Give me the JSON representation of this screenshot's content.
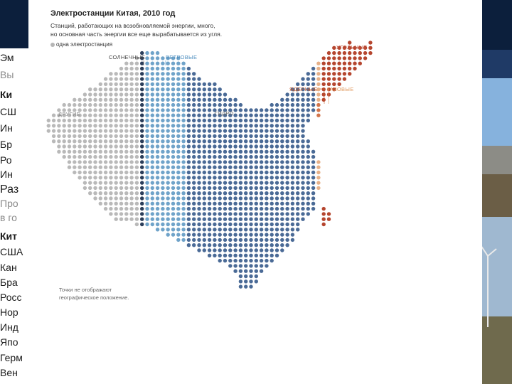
{
  "slide_left": {
    "lines": [
      {
        "text": "Эм",
        "style": "big"
      },
      {
        "text": "Вы",
        "style": "grey"
      },
      {
        "text": "Ки",
        "style": "bold"
      },
      {
        "text": "СШ",
        "style": ""
      },
      {
        "text": "Ин",
        "style": ""
      },
      {
        "text": "Бр",
        "style": ""
      },
      {
        "text": "Ро",
        "style": ""
      },
      {
        "text": "Ин",
        "style": ""
      },
      {
        "text": "Раз",
        "style": "big"
      },
      {
        "text": "Про",
        "style": "grey"
      },
      {
        "text": "в го",
        "style": "grey"
      },
      {
        "text": "Кит",
        "style": "bold"
      },
      {
        "text": "США",
        "style": ""
      },
      {
        "text": "Кан",
        "style": ""
      },
      {
        "text": "Бра",
        "style": ""
      },
      {
        "text": "Росс",
        "style": ""
      },
      {
        "text": "Нор",
        "style": ""
      },
      {
        "text": "Инд",
        "style": ""
      },
      {
        "text": "Япо",
        "style": ""
      },
      {
        "text": "Герм",
        "style": ""
      },
      {
        "text": "Вен",
        "style": ""
      }
    ]
  },
  "chart_data": {
    "type": "dot-map",
    "title": "Электростанции Китая, 2010 год",
    "subtitle_lines": [
      "Станций, работающих на возобновляемой энергии, много,",
      "но основная часть энергии все еще вырабатывается из угля."
    ],
    "legend": "одна электростанция",
    "note_lines": [
      "Точки не отображают",
      "географическое положение."
    ],
    "categories": [
      {
        "name": "ДРУГИЕ",
        "color": "#b9b9b9",
        "label_color": "#8a8a8a"
      },
      {
        "name": "СОЛНЕЧНЫЕ",
        "color": "#2a3d5a",
        "label_color": "#444444"
      },
      {
        "name": "ВЕТРОВЫЕ",
        "color": "#6fa3c9",
        "label_color": "#4f8fc0"
      },
      {
        "name": "ГИДРО",
        "color": "#4a6a96",
        "label_color": "#6b6b6b"
      },
      {
        "name": "ЯДЕРНЫЕ",
        "color": "#d2744a",
        "label_color": "#c85a2a"
      },
      {
        "name": "ГАЗОВЫЕ",
        "color": "#e6b088",
        "label_color": "#e09a60"
      },
      {
        "name": "УГОЛЬНЫЕ",
        "color": "#b5452e",
        "label_color": "#c0503a"
      }
    ]
  }
}
